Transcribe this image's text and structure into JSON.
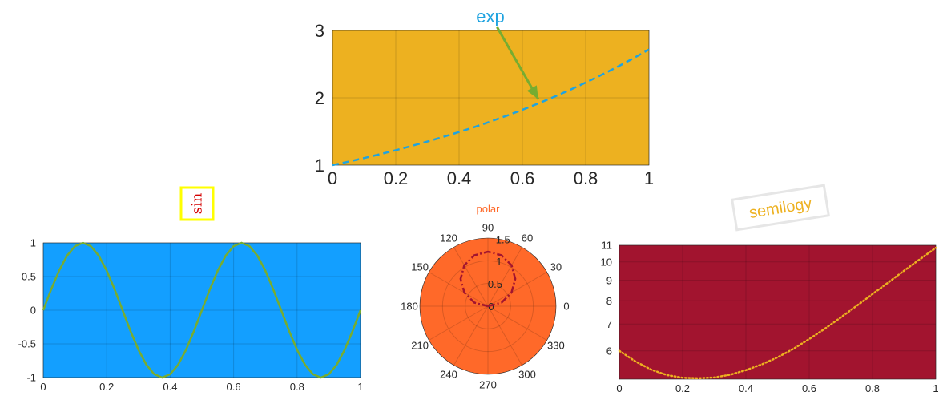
{
  "chart_data": [
    {
      "type": "line",
      "title": "exp",
      "annotation_arrow": {
        "from_x": 0.52,
        "from_y": 3.05,
        "to_x": 0.65,
        "to_y": 1.98
      },
      "x": [
        0,
        0.05,
        0.1,
        0.15,
        0.2,
        0.25,
        0.3,
        0.35,
        0.4,
        0.45,
        0.5,
        0.55,
        0.6,
        0.65,
        0.7,
        0.75,
        0.8,
        0.85,
        0.9,
        0.95,
        1
      ],
      "series": [
        {
          "values": [
            1.0,
            1.051,
            1.105,
            1.162,
            1.221,
            1.284,
            1.35,
            1.419,
            1.492,
            1.568,
            1.649,
            1.733,
            1.822,
            1.916,
            2.014,
            2.117,
            2.226,
            2.34,
            2.46,
            2.586,
            2.718
          ]
        }
      ],
      "xlim": [
        0,
        1
      ],
      "ylim": [
        1,
        3
      ],
      "xticks": [
        "0",
        "0.2",
        "0.4",
        "0.6",
        "0.8",
        "1"
      ],
      "yticks": [
        "1",
        "2",
        "3"
      ],
      "grid": true,
      "colors": {
        "background": "#EDB120",
        "line": "#1FA3E0",
        "title": "#1FA3E0",
        "arrow": "#77AC30"
      },
      "line_style": "dashed"
    },
    {
      "type": "line",
      "title": "sin",
      "x": [
        0,
        0.025,
        0.05,
        0.075,
        0.1,
        0.125,
        0.15,
        0.175,
        0.2,
        0.225,
        0.25,
        0.275,
        0.3,
        0.325,
        0.35,
        0.375,
        0.4,
        0.425,
        0.45,
        0.475,
        0.5,
        0.525,
        0.55,
        0.575,
        0.6,
        0.625,
        0.65,
        0.675,
        0.7,
        0.725,
        0.75,
        0.775,
        0.8,
        0.825,
        0.85,
        0.875,
        0.9,
        0.925,
        0.95,
        0.975,
        1
      ],
      "series": [
        {
          "values": [
            0,
            0.309,
            0.588,
            0.809,
            0.951,
            1,
            0.951,
            0.809,
            0.588,
            0.309,
            0,
            -0.309,
            -0.588,
            -0.809,
            -0.951,
            -1,
            -0.951,
            -0.809,
            -0.588,
            -0.309,
            0,
            0.309,
            0.588,
            0.809,
            0.951,
            1,
            0.951,
            0.809,
            0.588,
            0.309,
            0,
            -0.309,
            -0.588,
            -0.809,
            -0.951,
            -1,
            -0.951,
            -0.809,
            -0.588,
            -0.309,
            0
          ]
        }
      ],
      "xlim": [
        0,
        1
      ],
      "ylim": [
        -1,
        1
      ],
      "xticks": [
        "0",
        "0.2",
        "0.4",
        "0.6",
        "0.8",
        "1"
      ],
      "yticks": [
        "-1",
        "-0.5",
        "0",
        "0.5",
        "1"
      ],
      "grid": true,
      "colors": {
        "background": "#139FFF",
        "line": "#77AC30",
        "title": "#D40000",
        "title_box": "#FFFF00"
      }
    },
    {
      "type": "polar",
      "title": "polar",
      "theta_ticks": [
        "0",
        "30",
        "60",
        "90",
        "120",
        "150",
        "180",
        "210",
        "240",
        "270",
        "300",
        "330"
      ],
      "r_ticks": [
        "0",
        "0.5",
        "1",
        "1.5"
      ],
      "rlim": [
        0,
        1.5
      ],
      "series": [
        {
          "equation": "r = 2*sin(theta)*0.6",
          "theta_deg": [
            0,
            15,
            30,
            45,
            60,
            75,
            90,
            105,
            120,
            135,
            150,
            165,
            180
          ],
          "r": [
            0,
            0.31,
            0.6,
            0.85,
            1.04,
            1.16,
            1.2,
            1.16,
            1.04,
            0.85,
            0.6,
            0.31,
            0
          ]
        }
      ],
      "colors": {
        "background": "#FF6929",
        "line": "#A2142F",
        "title": "#FF6929"
      },
      "line_style": "dash-dot"
    },
    {
      "type": "line",
      "title": "semilogy",
      "x": [
        0,
        0.05,
        0.1,
        0.15,
        0.2,
        0.25,
        0.3,
        0.35,
        0.4,
        0.45,
        0.5,
        0.55,
        0.6,
        0.65,
        0.7,
        0.75,
        0.8,
        0.85,
        0.9,
        0.95,
        1
      ],
      "series": [
        {
          "values": [
            6.0,
            5.65,
            5.39,
            5.22,
            5.14,
            5.125,
            5.15,
            5.23,
            5.37,
            5.55,
            5.78,
            6.07,
            6.42,
            6.82,
            7.27,
            7.77,
            8.31,
            8.89,
            9.51,
            10.16,
            10.84
          ]
        }
      ],
      "xlim": [
        0,
        1
      ],
      "ylim": [
        5.1,
        11
      ],
      "yscale": "log",
      "xticks": [
        "0",
        "0.2",
        "0.4",
        "0.6",
        "0.8",
        "1"
      ],
      "yticks": [
        "6",
        "7",
        "8",
        "9",
        "10",
        "11"
      ],
      "grid": true,
      "colors": {
        "background": "#A2142F",
        "line": "#EDB120",
        "title": "#EDB120"
      },
      "line_style": "dotted"
    }
  ]
}
